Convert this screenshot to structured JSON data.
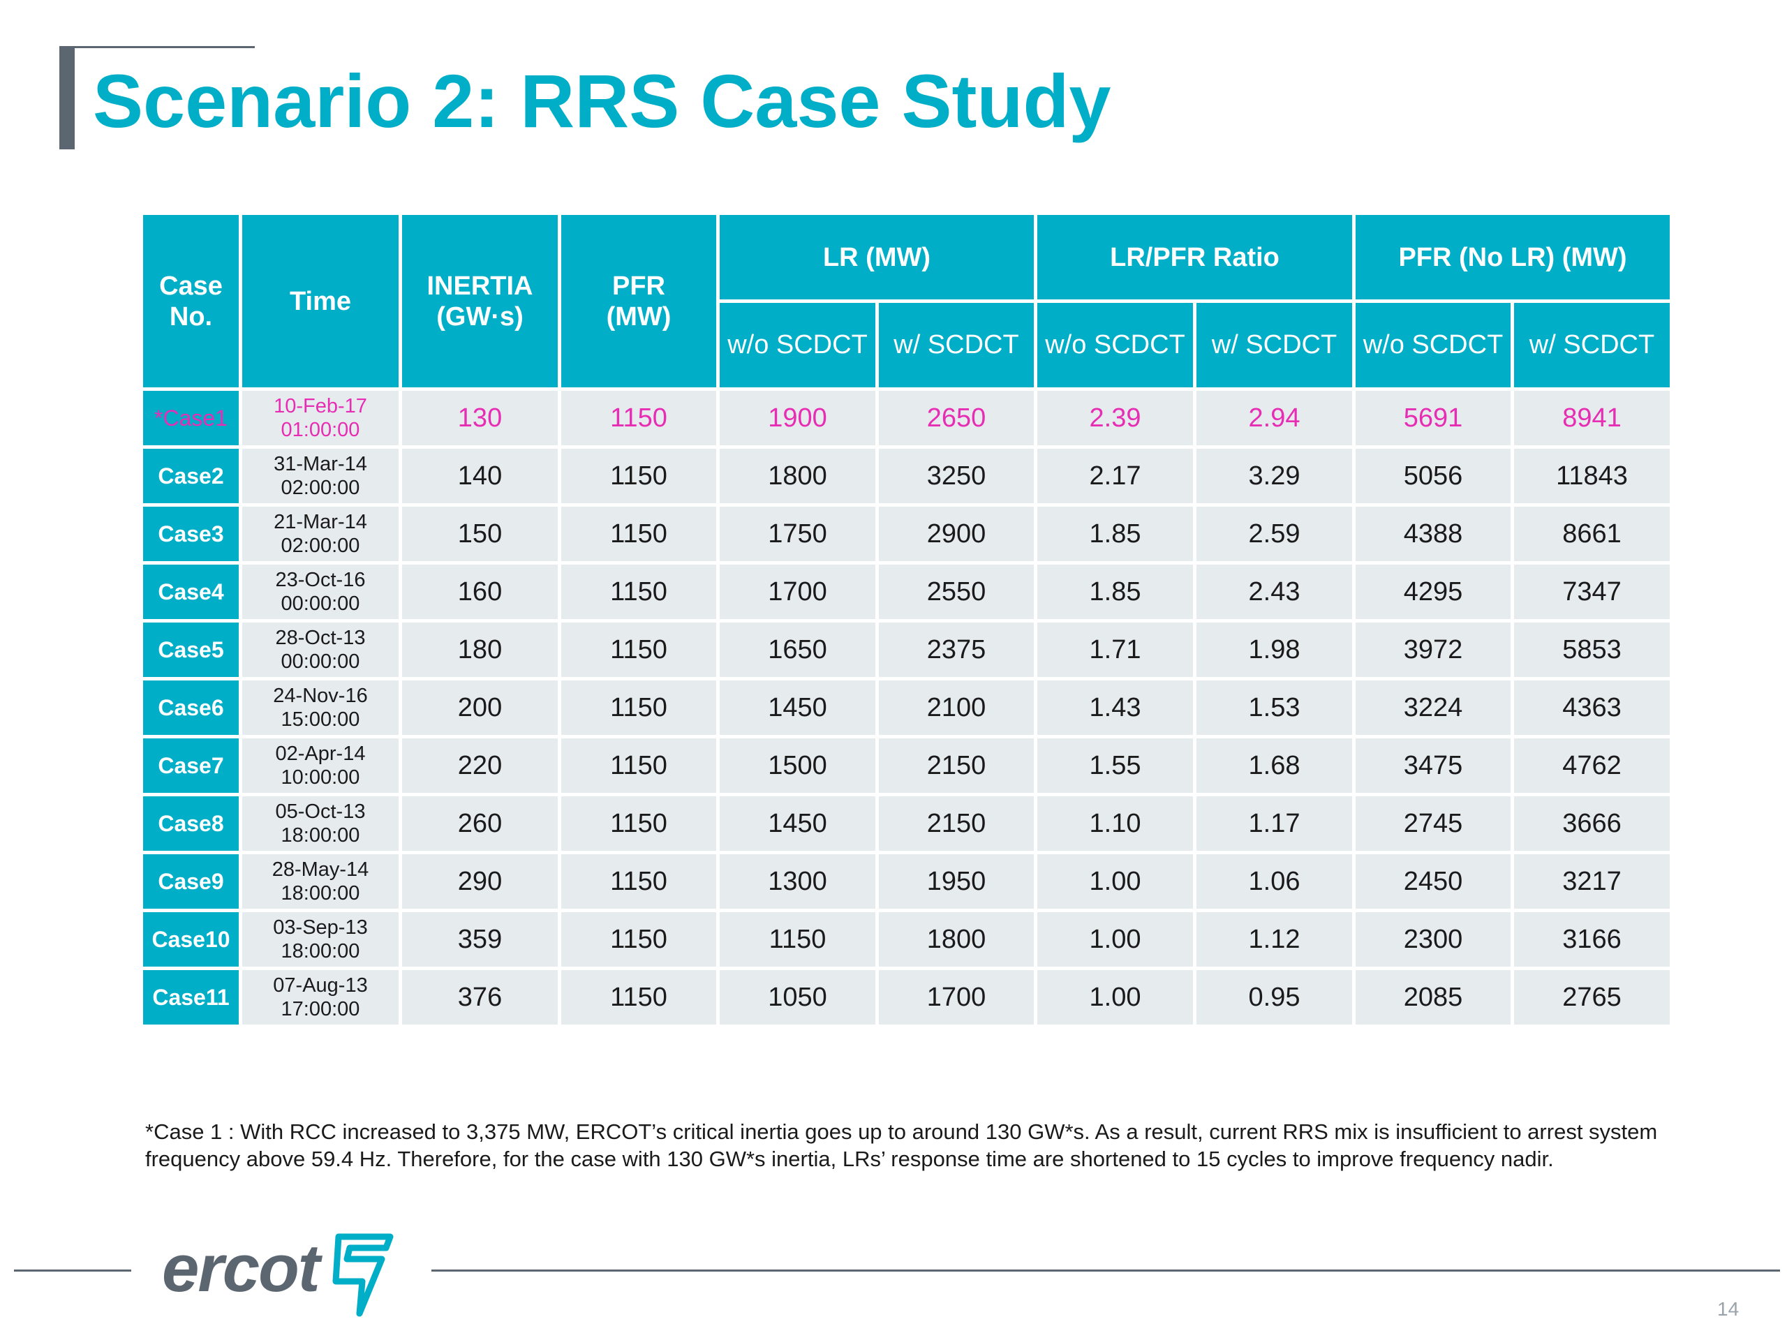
{
  "title": "Scenario 2: RRS Case Study",
  "table": {
    "headers": {
      "case_no": "Case\nNo.",
      "time": "Time",
      "inertia": "INERTIA\n(GW·s)",
      "pfr": "PFR\n(MW)",
      "lr": "LR (MW)",
      "ratio": "LR/PFR Ratio",
      "pfr_no_lr": "PFR (No LR) (MW)",
      "wo": "w/o SCDCT",
      "w": "w/ SCDCT"
    },
    "rows": [
      {
        "case": "*Case1",
        "date": "10-Feb-17",
        "time": "01:00:00",
        "inertia": "130",
        "pfr": "1150",
        "lr_wo": "1900",
        "lr_w": "2650",
        "ratio_wo": "2.39",
        "ratio_w": "2.94",
        "pfr_wo": "5691",
        "pfr_w": "8941"
      },
      {
        "case": "Case2",
        "date": "31-Mar-14",
        "time": "02:00:00",
        "inertia": "140",
        "pfr": "1150",
        "lr_wo": "1800",
        "lr_w": "3250",
        "ratio_wo": "2.17",
        "ratio_w": "3.29",
        "pfr_wo": "5056",
        "pfr_w": "11843"
      },
      {
        "case": "Case3",
        "date": "21-Mar-14",
        "time": "02:00:00",
        "inertia": "150",
        "pfr": "1150",
        "lr_wo": "1750",
        "lr_w": "2900",
        "ratio_wo": "1.85",
        "ratio_w": "2.59",
        "pfr_wo": "4388",
        "pfr_w": "8661"
      },
      {
        "case": "Case4",
        "date": "23-Oct-16",
        "time": "00:00:00",
        "inertia": "160",
        "pfr": "1150",
        "lr_wo": "1700",
        "lr_w": "2550",
        "ratio_wo": "1.85",
        "ratio_w": "2.43",
        "pfr_wo": "4295",
        "pfr_w": "7347"
      },
      {
        "case": "Case5",
        "date": "28-Oct-13",
        "time": "00:00:00",
        "inertia": "180",
        "pfr": "1150",
        "lr_wo": "1650",
        "lr_w": "2375",
        "ratio_wo": "1.71",
        "ratio_w": "1.98",
        "pfr_wo": "3972",
        "pfr_w": "5853"
      },
      {
        "case": "Case6",
        "date": "24-Nov-16",
        "time": "15:00:00",
        "inertia": "200",
        "pfr": "1150",
        "lr_wo": "1450",
        "lr_w": "2100",
        "ratio_wo": "1.43",
        "ratio_w": "1.53",
        "pfr_wo": "3224",
        "pfr_w": "4363"
      },
      {
        "case": "Case7",
        "date": "02-Apr-14",
        "time": "10:00:00",
        "inertia": "220",
        "pfr": "1150",
        "lr_wo": "1500",
        "lr_w": "2150",
        "ratio_wo": "1.55",
        "ratio_w": "1.68",
        "pfr_wo": "3475",
        "pfr_w": "4762"
      },
      {
        "case": "Case8",
        "date": "05-Oct-13",
        "time": "18:00:00",
        "inertia": "260",
        "pfr": "1150",
        "lr_wo": "1450",
        "lr_w": "2150",
        "ratio_wo": "1.10",
        "ratio_w": "1.17",
        "pfr_wo": "2745",
        "pfr_w": "3666"
      },
      {
        "case": "Case9",
        "date": "28-May-14",
        "time": "18:00:00",
        "inertia": "290",
        "pfr": "1150",
        "lr_wo": "1300",
        "lr_w": "1950",
        "ratio_wo": "1.00",
        "ratio_w": "1.06",
        "pfr_wo": "2450",
        "pfr_w": "3217"
      },
      {
        "case": "Case10",
        "date": "03-Sep-13",
        "time": "18:00:00",
        "inertia": "359",
        "pfr": "1150",
        "lr_wo": "1150",
        "lr_w": "1800",
        "ratio_wo": "1.00",
        "ratio_w": "1.12",
        "pfr_wo": "2300",
        "pfr_w": "3166"
      },
      {
        "case": "Case11",
        "date": "07-Aug-13",
        "time": "17:00:00",
        "inertia": "376",
        "pfr": "1150",
        "lr_wo": "1050",
        "lr_w": "1700",
        "ratio_wo": "1.00",
        "ratio_w": "0.95",
        "pfr_wo": "2085",
        "pfr_w": "2765"
      }
    ]
  },
  "footnote": "*Case 1 : With RCC increased to 3,375 MW, ERCOT’s critical inertia goes up to around 130 GW*s. As a result, current RRS mix is insufficient to arrest system frequency above 59.4 Hz. Therefore, for the case with 130 GW*s inertia, LRs’ response time are shortened to 15 cycles to improve frequency nadir.",
  "logo_text": "ercot",
  "page_number": "14",
  "colors": {
    "accent": "#00aec7",
    "highlight": "#e62db3",
    "cell_bg": "#e6ebee",
    "rule": "#5b6670"
  }
}
